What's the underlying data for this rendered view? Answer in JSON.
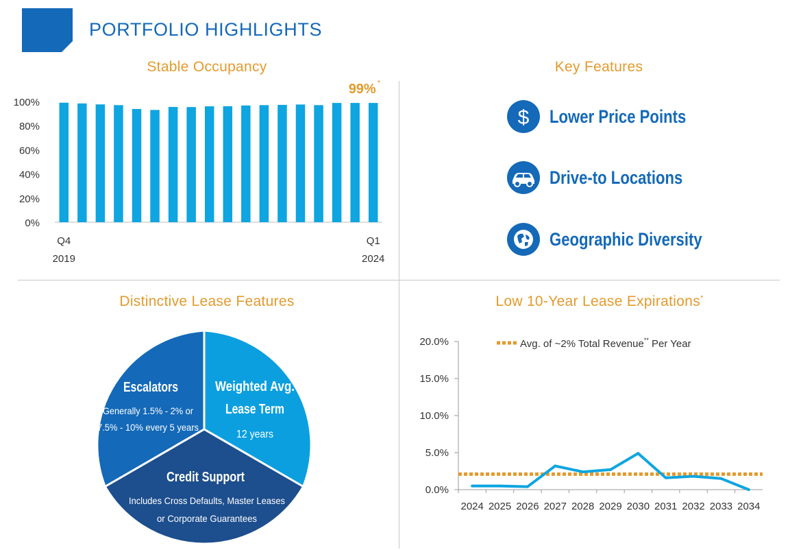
{
  "header": {
    "title": "PORTFOLIO HIGHLIGHTS"
  },
  "sections": {
    "occupancy_title": "Stable Occupancy",
    "key_features_title": "Key Features",
    "lease_features_title": "Distinctive Lease Features",
    "expirations_title": "Low 10-Year Lease Expirations",
    "expirations_title_mark": "*"
  },
  "key_features": [
    {
      "icon": "dollar-icon",
      "label": "Lower Price Points"
    },
    {
      "icon": "car-icon",
      "label": "Drive-to Locations"
    },
    {
      "icon": "globe-icon",
      "label": "Geographic Diversity"
    }
  ],
  "lease_pie": {
    "slices": [
      {
        "title": "Escalators",
        "body": [
          "Generally 1.5% - 2% or",
          "7.5% - 10% every 5 years"
        ],
        "color": "#1469b8"
      },
      {
        "title": "Weighted Avg.",
        "title2": "Lease Term",
        "body": [
          "12 years"
        ],
        "color": "#0b9fdf"
      },
      {
        "title": "Credit Support",
        "body": [
          "Includes Cross Defaults, Master Leases",
          "or Corporate Guarantees"
        ],
        "color": "#1d4e8d"
      }
    ]
  },
  "chart_data": [
    {
      "type": "bar",
      "title": "Stable Occupancy",
      "x_start_label": [
        "Q4",
        "2019"
      ],
      "x_end_label": [
        "Q1",
        "2024"
      ],
      "values": [
        99.0,
        98.4,
        97.6,
        97.0,
        93.8,
        93.0,
        95.5,
        95.4,
        96.0,
        96.1,
        96.7,
        97.0,
        97.2,
        97.5,
        97.0,
        98.8,
        98.8,
        98.8
      ],
      "ylim": [
        0,
        100
      ],
      "yticks": [
        "0%",
        "20%",
        "40%",
        "60%",
        "80%",
        "100%"
      ],
      "annotation": "99%",
      "annotation_mark": "*",
      "color": "#0ea5e0"
    },
    {
      "type": "line",
      "title": "Low 10-Year Lease Expirations",
      "x": [
        "2024",
        "2025",
        "2026",
        "2027",
        "2028",
        "2029",
        "2030",
        "2031",
        "2032",
        "2033",
        "2034"
      ],
      "values": [
        0.5,
        0.5,
        0.4,
        3.2,
        2.4,
        2.7,
        4.9,
        1.6,
        1.8,
        1.5,
        0.0
      ],
      "ylim": [
        0,
        20
      ],
      "yticks": [
        "0.0%",
        "5.0%",
        "10.0%",
        "15.0%",
        "20.0%"
      ],
      "reference_line": {
        "value": 2.1,
        "label": "Avg. of ~2% Total Revenue",
        "label_mark": "**",
        "label_suffix": " Per Year",
        "color": "#e39a2c"
      },
      "color": "#0ea5e0"
    }
  ]
}
